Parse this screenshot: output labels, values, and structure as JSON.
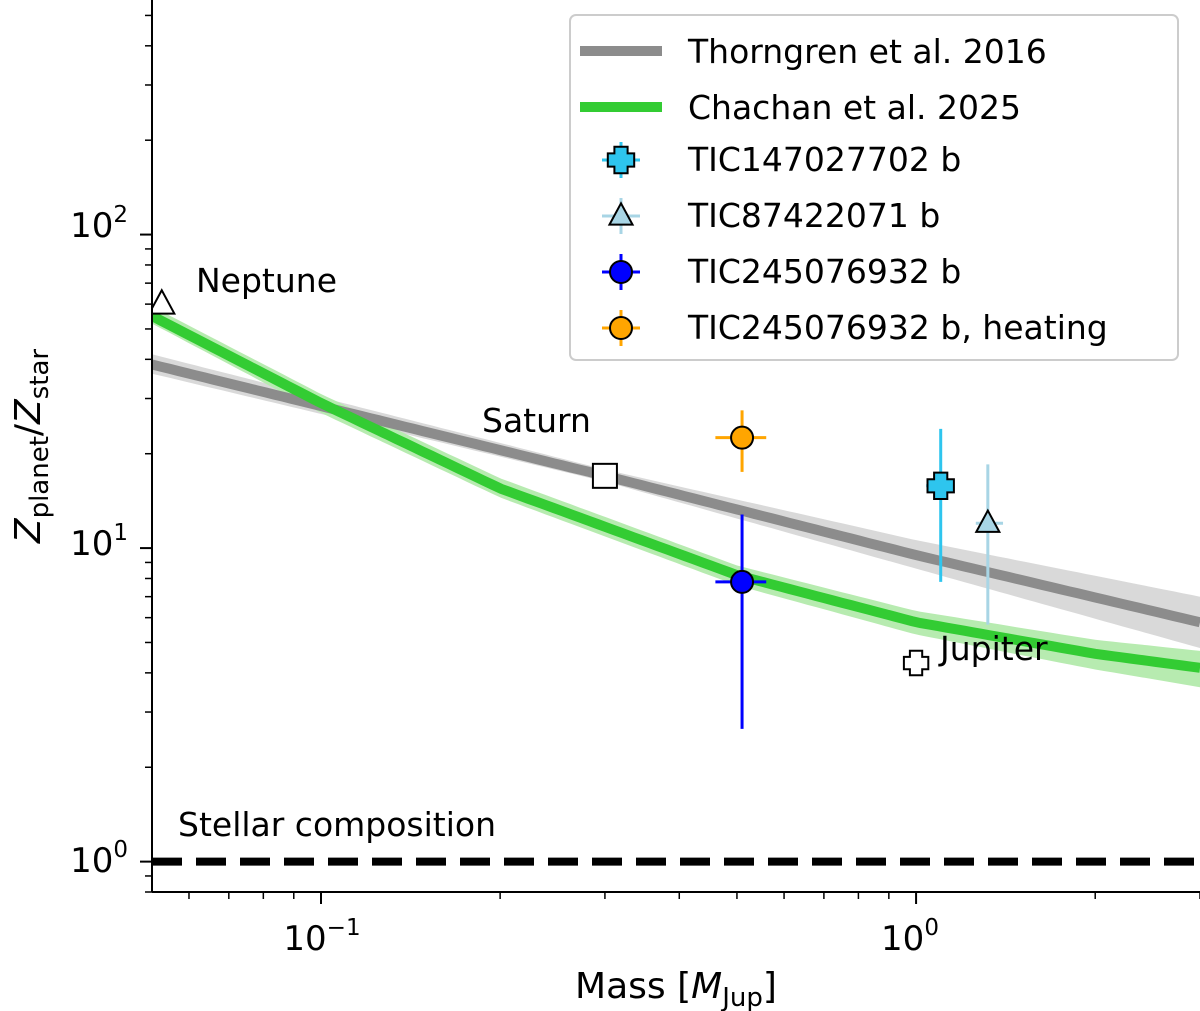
{
  "chart_data": {
    "type": "scatter",
    "xscale": "log",
    "yscale": "log",
    "xlim": [
      0.052,
      3.0
    ],
    "ylim": [
      0.8,
      560
    ],
    "xlabel": {
      "main": "Mass [",
      "math": "M",
      "sub": "Jup",
      "end": "]"
    },
    "ylabel": {
      "z1": "Z",
      "sub1": "planet",
      "slash": "/",
      "z2": "Z",
      "sub2": "star"
    },
    "x_ticks": [
      {
        "value": 0.1,
        "base": "10",
        "exp": "−1"
      },
      {
        "value": 1,
        "base": "10",
        "exp": "0"
      }
    ],
    "y_ticks": [
      {
        "value": 1,
        "base": "10",
        "exp": "0"
      },
      {
        "value": 10,
        "base": "10",
        "exp": "1"
      },
      {
        "value": 100,
        "base": "10",
        "exp": "2"
      }
    ],
    "series": [
      {
        "name": "Thorngren et al. 2016",
        "kind": "line",
        "color": "#8c8c8c",
        "band_color": "#d9d9d9",
        "points": [
          [
            0.052,
            38.5
          ],
          [
            0.3,
            17.0
          ],
          [
            1.0,
            9.5
          ],
          [
            3.0,
            5.8
          ]
        ],
        "band_lower": [
          [
            0.052,
            36.0
          ],
          [
            0.3,
            16.3
          ],
          [
            1.0,
            8.6
          ],
          [
            3.0,
            4.8
          ]
        ],
        "band_upper": [
          [
            0.052,
            41.5
          ],
          [
            0.3,
            17.8
          ],
          [
            1.0,
            10.6
          ],
          [
            3.0,
            7.0
          ]
        ]
      },
      {
        "name": "Chachan et al. 2025",
        "kind": "line",
        "color": "#33cc33",
        "band_color": "#b7ebb0",
        "points": [
          [
            0.052,
            55.0
          ],
          [
            0.1,
            29.0
          ],
          [
            0.2,
            15.5
          ],
          [
            0.5,
            8.2
          ],
          [
            1.0,
            5.8
          ],
          [
            2.0,
            4.6
          ],
          [
            3.0,
            4.15
          ]
        ],
        "band_lower": [
          [
            0.052,
            52.0
          ],
          [
            0.1,
            27.0
          ],
          [
            0.2,
            14.5
          ],
          [
            0.5,
            7.6
          ],
          [
            1.0,
            5.3
          ],
          [
            2.0,
            4.1
          ],
          [
            3.0,
            3.6
          ]
        ],
        "band_upper": [
          [
            0.052,
            59.0
          ],
          [
            0.1,
            31.0
          ],
          [
            0.2,
            16.7
          ],
          [
            0.5,
            8.8
          ],
          [
            1.0,
            6.3
          ],
          [
            2.0,
            5.1
          ],
          [
            3.0,
            4.7
          ]
        ]
      },
      {
        "name": "TIC147027702 b",
        "kind": "point",
        "marker": "x",
        "color": "#2ec5ee",
        "x": 1.1,
        "y": 15.8,
        "xerr": [
          1.04,
          1.16
        ],
        "yerr": [
          7.8,
          24.0
        ]
      },
      {
        "name": "TIC87422071 b",
        "kind": "point",
        "marker": "triangle",
        "color": "#a8d5e5",
        "x": 1.32,
        "y": 12.0,
        "xerr": [
          1.26,
          1.4
        ],
        "yerr": [
          5.7,
          18.5
        ]
      },
      {
        "name": "TIC245076932 b",
        "kind": "point",
        "marker": "circle",
        "color": "#0000ff",
        "x": 0.51,
        "y": 7.8,
        "xerr": [
          0.46,
          0.56
        ],
        "yerr": [
          2.65,
          12.8
        ]
      },
      {
        "name": "TIC245076932 b, heating",
        "kind": "point",
        "marker": "circle",
        "color": "#ffa500",
        "x": 0.51,
        "y": 22.5,
        "xerr": [
          0.46,
          0.56
        ],
        "yerr": [
          17.5,
          27.5
        ]
      }
    ],
    "solar_system": [
      {
        "name": "Neptune",
        "marker": "triangle",
        "x": 0.054,
        "y": 60.0
      },
      {
        "name": "Saturn",
        "marker": "square",
        "x": 0.3,
        "y": 17.0
      },
      {
        "name": "Jupiter",
        "marker": "x",
        "x": 1.0,
        "y": 4.3
      }
    ],
    "reference_line": {
      "label": "Stellar composition",
      "y": 1.0,
      "style": "dashed",
      "color": "#000000"
    },
    "legend": {
      "position": "top-right"
    }
  }
}
